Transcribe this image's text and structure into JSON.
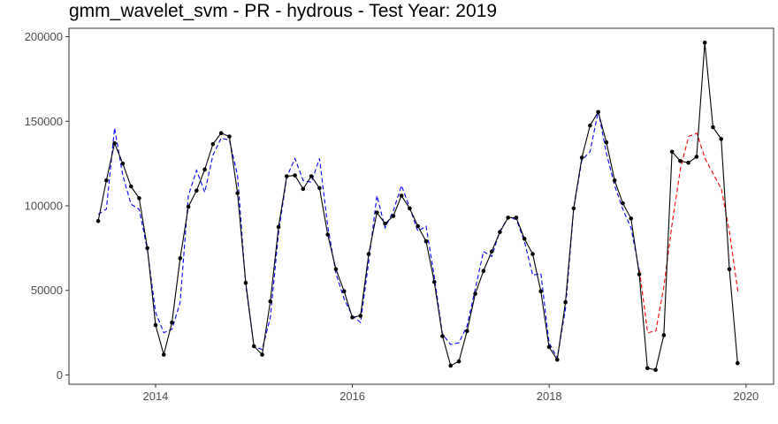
{
  "chart_data": {
    "type": "line",
    "title": "gmm_wavelet_svm - PR - hydrous - Test Year: 2019",
    "xlabel": "",
    "ylabel": "",
    "xlim": [
      2013.12,
      2020.28
    ],
    "ylim": [
      -5500,
      205000
    ],
    "x_ticks": [
      2014,
      2016,
      2018,
      2020
    ],
    "x_tick_labels": [
      "2014",
      "2016",
      "2018",
      "2020"
    ],
    "y_ticks": [
      0,
      50000,
      100000,
      150000,
      200000
    ],
    "y_tick_labels": [
      "0",
      "50000",
      "100000",
      "150000",
      "200000"
    ],
    "grid": false,
    "legend": "none",
    "series": [
      {
        "role": "observed",
        "color": "#000000",
        "line_style": "solid",
        "markers": true,
        "start": 2013.417,
        "step": 0.0833,
        "values": [
          91000,
          115000,
          137000,
          125000,
          111500,
          104500,
          75000,
          29500,
          12000,
          31000,
          69000,
          99500,
          109000,
          121500,
          136500,
          143000,
          141000,
          107500,
          54500,
          17000,
          12000,
          43500,
          87500,
          117500,
          118000,
          110000,
          117500,
          110500,
          83000,
          62500,
          49500,
          34000,
          35000,
          71500,
          96000,
          89500,
          94000,
          106000,
          98500,
          88000,
          79000,
          55000,
          23000,
          5500,
          8000,
          26000,
          48000,
          61500,
          73000,
          84500,
          93000,
          93000,
          80500,
          71500,
          49500,
          16500,
          9000,
          43000,
          98500,
          128500,
          147500,
          155500,
          137500,
          115000,
          101500,
          92500,
          59500,
          4000,
          3000,
          23500,
          132000,
          126500,
          125500,
          129000,
          196500,
          146500,
          139500,
          62500,
          7000
        ]
      },
      {
        "role": "fitted",
        "color": "#0000ff",
        "line_style": "dashed",
        "markers": false,
        "start": 2013.417,
        "step": 0.0833,
        "values": [
          95000,
          98000,
          146000,
          118000,
          101000,
          98000,
          74000,
          37000,
          25000,
          27000,
          43000,
          106000,
          121000,
          108000,
          130000,
          140000,
          139000,
          118000,
          53000,
          17000,
          15000,
          34000,
          84000,
          117000,
          128000,
          115000,
          114000,
          128000,
          88000,
          60000,
          45000,
          35000,
          31000,
          67000,
          106000,
          87000,
          97000,
          112000,
          99000,
          85000,
          88000,
          58000,
          24000,
          18000,
          19000,
          29000,
          51000,
          73000,
          70000,
          85000,
          93000,
          92000,
          79000,
          59000,
          60000,
          19000,
          10000,
          39000,
          98000,
          127000,
          132000,
          156000,
          131000,
          112000,
          98000,
          87000,
          62000
        ]
      },
      {
        "role": "forecast",
        "color": "#ff0000",
        "line_style": "dashed",
        "markers": false,
        "start": 2018.917,
        "step": 0.0833,
        "values": [
          62000,
          25000,
          26000,
          53000,
          90000,
          122000,
          141000,
          143000,
          128000,
          119000,
          110000,
          84000,
          49500
        ]
      }
    ]
  }
}
